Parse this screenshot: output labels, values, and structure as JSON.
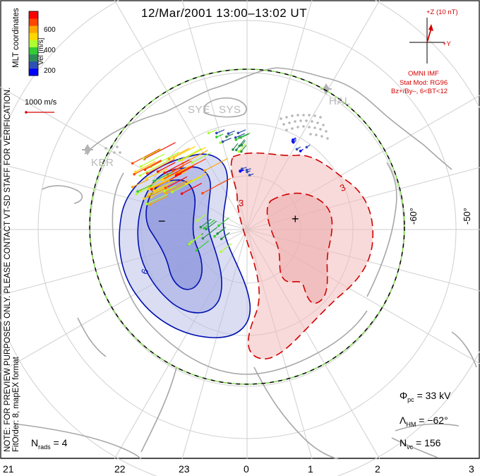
{
  "title": "12/Mar/2001  13:00–13:02  UT",
  "side_note": [
    "NOTE: FOR PREVIEW PURPOSES ONLY. PLEASE CONTACT VT-SD STAFF FOR VERIFICATION.",
    "FitOrder: 8,  mapEX format"
  ],
  "coordinates_label": "MLT coordinates",
  "colorbar": {
    "title": "Vel [m/s]",
    "ticks": [
      "600",
      "400",
      "200"
    ],
    "colors": [
      "#0000ff",
      "#2f4fb4",
      "#2e8b57",
      "#32cd32",
      "#adff2f",
      "#ffd700",
      "#ffa500",
      "#ff4500",
      "#ff0000"
    ]
  },
  "reference_vector": {
    "label": "1000 m/s"
  },
  "imf": {
    "z_label": "+Z (10 nT)",
    "y_label": "+Y",
    "source": "OMNI IMF",
    "stat_model": "Stat Mod: RG96",
    "condition": "Bz+/By–, 6<BT<12"
  },
  "stations": [
    "SYE",
    "SYS",
    "HAL",
    "KER"
  ],
  "latitude_labels": [
    "-60°",
    "-50°"
  ],
  "hour_labels": [
    "21",
    "22",
    "23",
    "0",
    "1",
    "2",
    "3"
  ],
  "stats": {
    "pcp_symbol": "Φ",
    "pcp_sub": "pc",
    "pcp_value": " = 33 kV",
    "hm_symbol": "Λ",
    "hm_sub": "HM",
    "hm_value": " = −62°",
    "nvc_symbol": "N",
    "nvc_sub": "vc",
    "nvc_value": " = 156",
    "nrads_symbol": "N",
    "nrads_sub": "rads",
    "nrads_value": " = 4"
  },
  "contour_labels": {
    "negative_min": "−",
    "positive_max": "+",
    "neg_value": "6",
    "pos_value": "3"
  },
  "colors": {
    "negative_cell": "#0000b4",
    "positive_cell": "#d00000",
    "hm_boundary_dash_a": "#000000",
    "hm_boundary_dash_b": "#7dd64a",
    "grid": "#c8c8c8",
    "coast": "#a8a8a8"
  }
}
